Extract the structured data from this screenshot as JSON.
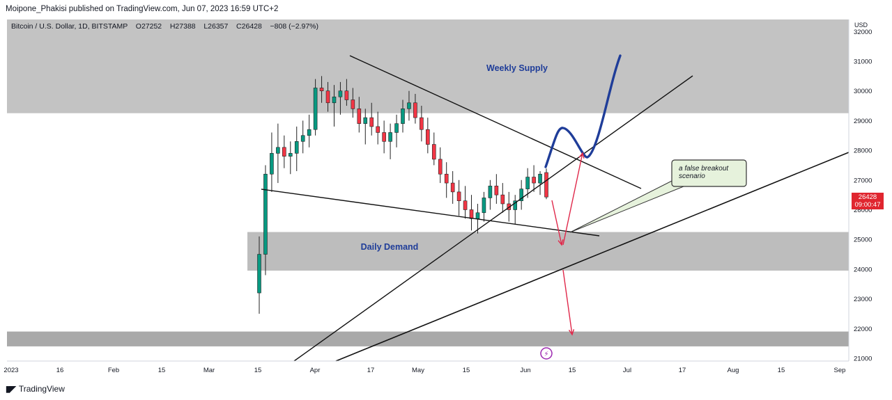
{
  "header": {
    "published": "Moipone_Phakisi published on TradingView.com, Jun 07, 2023 16:59 UTC+2"
  },
  "legend": {
    "symbol": "Bitcoin / U.S. Dollar, 1D, BITSTAMP",
    "o_label": "O",
    "o_value": "27252",
    "h_label": "H",
    "h_value": "27388",
    "l_label": "L",
    "l_value": "26357",
    "c_label": "C",
    "c_value": "26428",
    "change": "−808 (−2.97%)"
  },
  "price_tag": {
    "price": "26428",
    "countdown": "09:00:47"
  },
  "footer": {
    "brand": "TradingView"
  },
  "chart_data": {
    "type": "candlestick",
    "currency": "USD",
    "y_axis": {
      "range": [
        21000,
        32000
      ],
      "ticks": [
        21000,
        22000,
        23000,
        24000,
        25000,
        26000,
        27000,
        28000,
        29000,
        30000,
        31000,
        32000
      ]
    },
    "x_axis": {
      "tick_labels": [
        "2023",
        "16",
        "Feb",
        "15",
        "Mar",
        "15",
        "Apr",
        "17",
        "May",
        "15",
        "Jun",
        "15",
        "Jul",
        "17",
        "Aug",
        "15",
        "Sep"
      ]
    },
    "zones": [
      {
        "label": "Weekly Supply",
        "from": 29250,
        "to": 32500
      },
      {
        "label": "Daily Demand",
        "from": 23950,
        "to": 25250
      },
      {
        "label": "",
        "from": 21400,
        "to": 21900
      }
    ],
    "annotations": [
      {
        "text": "a false breakout scenario"
      }
    ],
    "colors": {
      "up": "#089981",
      "down": "#f23645",
      "zone": "#c8c8c8",
      "projection": "#1f3d99",
      "arrow": "#e0284a"
    },
    "candles": [
      [
        23.2,
        25.1,
        22.5,
        24.5
      ],
      [
        24.5,
        27.5,
        23.8,
        27.2
      ],
      [
        27.2,
        28.6,
        26.6,
        27.9
      ],
      [
        27.9,
        28.9,
        26.9,
        28.1
      ],
      [
        28.1,
        28.5,
        27.4,
        27.8
      ],
      [
        27.8,
        28.3,
        27.2,
        27.9
      ],
      [
        27.9,
        28.8,
        27.3,
        28.3
      ],
      [
        28.3,
        29.0,
        27.9,
        28.5
      ],
      [
        28.5,
        29.2,
        28.1,
        28.7
      ],
      [
        28.7,
        30.4,
        28.5,
        30.1
      ],
      [
        30.1,
        30.5,
        29.6,
        30.0
      ],
      [
        30.0,
        30.3,
        29.3,
        29.6
      ],
      [
        29.6,
        30.2,
        28.8,
        29.8
      ],
      [
        29.8,
        30.3,
        29.2,
        30.0
      ],
      [
        30.0,
        30.4,
        29.5,
        29.7
      ],
      [
        29.7,
        30.1,
        29.1,
        29.4
      ],
      [
        29.4,
        29.8,
        28.6,
        28.9
      ],
      [
        28.9,
        29.4,
        28.2,
        29.1
      ],
      [
        29.1,
        29.6,
        28.5,
        28.8
      ],
      [
        28.8,
        29.3,
        28.2,
        28.6
      ],
      [
        28.6,
        29.0,
        27.9,
        28.3
      ],
      [
        28.3,
        28.9,
        27.7,
        28.6
      ],
      [
        28.6,
        29.2,
        28.1,
        28.9
      ],
      [
        28.9,
        29.7,
        28.6,
        29.4
      ],
      [
        29.4,
        30.0,
        29.0,
        29.6
      ],
      [
        29.6,
        29.9,
        28.9,
        29.1
      ],
      [
        29.1,
        29.5,
        28.3,
        28.7
      ],
      [
        28.7,
        29.1,
        27.9,
        28.2
      ],
      [
        28.2,
        28.6,
        27.5,
        27.7
      ],
      [
        27.7,
        28.1,
        26.9,
        27.2
      ],
      [
        27.2,
        27.6,
        26.4,
        26.9
      ],
      [
        26.9,
        27.3,
        26.2,
        26.6
      ],
      [
        26.6,
        27.0,
        25.8,
        26.3
      ],
      [
        26.3,
        26.8,
        25.7,
        26.0
      ],
      [
        26.0,
        26.5,
        25.3,
        25.7
      ],
      [
        25.7,
        26.2,
        25.2,
        25.9
      ],
      [
        25.9,
        26.6,
        25.6,
        26.4
      ],
      [
        26.4,
        27.0,
        26.0,
        26.8
      ],
      [
        26.8,
        27.2,
        26.2,
        26.5
      ],
      [
        26.5,
        26.9,
        25.9,
        26.2
      ],
      [
        26.2,
        26.6,
        25.6,
        26.0
      ],
      [
        26.0,
        26.5,
        25.5,
        26.3
      ],
      [
        26.3,
        27.0,
        26.0,
        26.7
      ],
      [
        26.7,
        27.4,
        26.4,
        27.1
      ],
      [
        27.1,
        27.5,
        26.6,
        26.9
      ],
      [
        26.9,
        27.3,
        26.5,
        27.2
      ],
      [
        27.252,
        27.388,
        26.357,
        26.428
      ]
    ]
  }
}
